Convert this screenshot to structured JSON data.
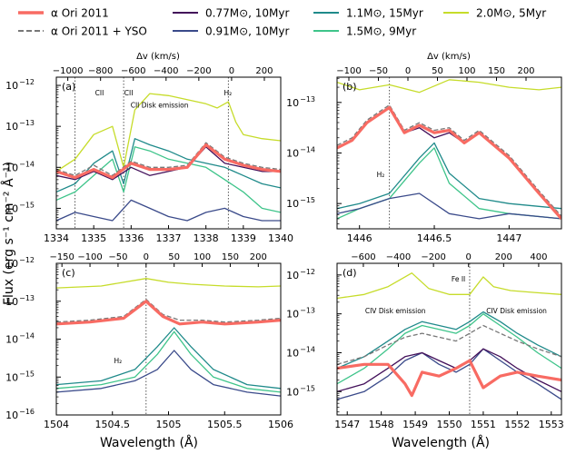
{
  "legend": [
    {
      "label": "α Ori 2011",
      "color": "#f86b63",
      "style": "solid-thick"
    },
    {
      "label": "α Ori 2011 + YSO",
      "color": "#777777",
      "style": "dashed"
    },
    {
      "label": "0.77M⊙, 10Myr",
      "color": "#43105a",
      "style": "solid"
    },
    {
      "label": "0.91M⊙, 10Myr",
      "color": "#3a4a8a",
      "style": "solid"
    },
    {
      "label": "1.1M⊙, 15Myr",
      "color": "#1f8a8a",
      "style": "solid"
    },
    {
      "label": "1.5M⊙, 9Myr",
      "color": "#3ec48a",
      "style": "solid"
    },
    {
      "label": "2.0M⊙, 5Myr",
      "color": "#c6dc2a",
      "style": "solid"
    }
  ],
  "ylabel": "Flux (erg s⁻¹ cm⁻² Å⁻¹)",
  "xlabel": "Wavelength (Å)",
  "toplabel": "Δv (km/s)",
  "chart_data": [
    {
      "id": "a",
      "panel_label": "(a)",
      "type": "line",
      "xlim": [
        1334,
        1340
      ],
      "xticks": [
        1334,
        1335,
        1336,
        1337,
        1338,
        1339,
        1340
      ],
      "ylim": [
        -15.5,
        -11.8
      ],
      "yticks": [
        -15,
        -14,
        -13,
        -12
      ],
      "vlim": [
        -1070,
        300
      ],
      "vticks": [
        -1000,
        -800,
        -600,
        -400,
        -200,
        0,
        200
      ],
      "vlines": [
        1334.5,
        1335.8,
        1338.6
      ],
      "line_labels": [
        "CII",
        "CII",
        "H₂"
      ],
      "annotations": [
        "CII Disk emission"
      ],
      "series": [
        {
          "name": "2.0M⊙, 5Myr",
          "x": [
            1334,
            1334.5,
            1335,
            1335.5,
            1335.8,
            1336.1,
            1336.5,
            1337,
            1337.5,
            1338,
            1338.3,
            1338.6,
            1338.8,
            1339,
            1339.5,
            1340
          ],
          "y": [
            -14.1,
            -13.8,
            -13.2,
            -13.0,
            -14.0,
            -12.6,
            -12.2,
            -12.25,
            -12.35,
            -12.45,
            -12.55,
            -12.4,
            -12.9,
            -13.2,
            -13.3,
            -13.35
          ]
        },
        {
          "name": "1.5M⊙, 9Myr",
          "x": [
            1334,
            1334.5,
            1335,
            1335.5,
            1335.8,
            1336.1,
            1336.5,
            1337,
            1337.5,
            1338,
            1338.5,
            1339,
            1339.5,
            1340
          ],
          "y": [
            -14.8,
            -14.6,
            -14.2,
            -13.8,
            -14.6,
            -13.5,
            -13.6,
            -13.8,
            -13.9,
            -14.0,
            -14.3,
            -14.6,
            -15.0,
            -15.1
          ]
        },
        {
          "name": "1.1M⊙, 15Myr",
          "x": [
            1334,
            1334.5,
            1335,
            1335.5,
            1335.8,
            1336.1,
            1336.5,
            1337,
            1337.5,
            1338,
            1338.5,
            1339,
            1339.5,
            1340
          ],
          "y": [
            -14.6,
            -14.4,
            -13.9,
            -13.6,
            -14.4,
            -13.3,
            -13.45,
            -13.6,
            -13.8,
            -13.9,
            -14.0,
            -14.2,
            -14.4,
            -14.5
          ]
        },
        {
          "name": "0.91M⊙, 10Myr",
          "x": [
            1334,
            1334.5,
            1335,
            1335.5,
            1336,
            1336.5,
            1337,
            1337.5,
            1338,
            1338.5,
            1339,
            1339.5,
            1340
          ],
          "y": [
            -15.3,
            -15.1,
            -15.2,
            -15.3,
            -14.8,
            -15.0,
            -15.2,
            -15.3,
            -15.1,
            -15.0,
            -15.2,
            -15.3,
            -15.3
          ]
        },
        {
          "name": "0.77M⊙, 10Myr",
          "x": [
            1334,
            1334.5,
            1335,
            1335.5,
            1336,
            1336.5,
            1337,
            1337.5,
            1338,
            1338.5,
            1339,
            1339.5,
            1340
          ],
          "y": [
            -14.2,
            -14.3,
            -14.1,
            -14.3,
            -14.0,
            -14.2,
            -14.1,
            -14.0,
            -13.5,
            -13.9,
            -14.0,
            -14.1,
            -14.1
          ]
        },
        {
          "name": "α Ori 2011 + YSO",
          "x": [
            1334,
            1334.5,
            1335,
            1335.5,
            1336,
            1336.5,
            1337,
            1337.5,
            1338,
            1338.5,
            1339,
            1339.5,
            1340
          ],
          "y": [
            -14.05,
            -14.2,
            -13.95,
            -14.2,
            -13.85,
            -14.0,
            -14.0,
            -13.95,
            -13.4,
            -13.75,
            -13.9,
            -14.0,
            -14.05
          ]
        },
        {
          "name": "α Ori 2011",
          "x": [
            1334,
            1334.5,
            1335,
            1335.5,
            1336,
            1336.5,
            1337,
            1337.5,
            1338,
            1338.5,
            1339,
            1339.5,
            1340
          ],
          "y": [
            -14.1,
            -14.25,
            -14.05,
            -14.25,
            -13.9,
            -14.05,
            -14.05,
            -14.0,
            -13.45,
            -13.8,
            -13.95,
            -14.05,
            -14.1
          ]
        }
      ]
    },
    {
      "id": "b",
      "panel_label": "(b)",
      "type": "line",
      "xlim": [
        1445.85,
        1447.35
      ],
      "xticks": [
        1446.0,
        1446.5,
        1447.0
      ],
      "ylim": [
        -15.5,
        -12.5
      ],
      "yticks": [
        -15,
        -14,
        -13
      ],
      "vlim": [
        -120,
        260
      ],
      "vticks": [
        -100,
        -50,
        0,
        50,
        100,
        150,
        200
      ],
      "vlines": [
        1446.2
      ],
      "line_labels": [
        "H₂"
      ],
      "annotations": [],
      "series": [
        {
          "name": "2.0M⊙, 5Myr",
          "x": [
            1445.85,
            1446.0,
            1446.2,
            1446.4,
            1446.6,
            1446.8,
            1447.0,
            1447.2,
            1447.35
          ],
          "y": [
            -12.6,
            -12.75,
            -12.65,
            -12.8,
            -12.55,
            -12.6,
            -12.7,
            -12.75,
            -12.7
          ]
        },
        {
          "name": "1.5M⊙, 9Myr",
          "x": [
            1445.85,
            1446.0,
            1446.2,
            1446.4,
            1446.5,
            1446.6,
            1446.8,
            1447.0,
            1447.35
          ],
          "y": [
            -15.3,
            -15.1,
            -14.9,
            -14.2,
            -13.9,
            -14.6,
            -15.1,
            -15.2,
            -15.3
          ]
        },
        {
          "name": "1.1M⊙, 15Myr",
          "x": [
            1445.85,
            1446.0,
            1446.2,
            1446.4,
            1446.5,
            1446.6,
            1446.8,
            1447.0,
            1447.35
          ],
          "y": [
            -15.1,
            -15.0,
            -14.8,
            -14.1,
            -13.8,
            -14.4,
            -14.9,
            -15.0,
            -15.1
          ]
        },
        {
          "name": "0.91M⊙, 10Myr",
          "x": [
            1445.85,
            1446.0,
            1446.2,
            1446.4,
            1446.6,
            1446.8,
            1447.0,
            1447.35
          ],
          "y": [
            -15.2,
            -15.1,
            -14.9,
            -14.8,
            -15.2,
            -15.3,
            -15.2,
            -15.3
          ]
        },
        {
          "name": "0.77M⊙, 10Myr",
          "x": [
            1445.85,
            1445.95,
            1446.05,
            1446.2,
            1446.3,
            1446.4,
            1446.5,
            1446.6,
            1446.7,
            1446.8,
            1447.0,
            1447.2,
            1447.35
          ],
          "y": [
            -13.9,
            -13.75,
            -13.4,
            -13.1,
            -13.6,
            -13.5,
            -13.7,
            -13.6,
            -13.8,
            -13.6,
            -14.1,
            -14.8,
            -15.3
          ]
        },
        {
          "name": "α Ori 2011 + YSO",
          "x": [
            1445.85,
            1445.95,
            1446.05,
            1446.2,
            1446.3,
            1446.4,
            1446.5,
            1446.6,
            1446.7,
            1446.8,
            1447.0,
            1447.2,
            1447.35
          ],
          "y": [
            -13.85,
            -13.7,
            -13.35,
            -13.05,
            -13.55,
            -13.4,
            -13.55,
            -13.5,
            -13.75,
            -13.55,
            -14.05,
            -14.75,
            -15.25
          ]
        },
        {
          "name": "α Ori 2011",
          "x": [
            1445.85,
            1445.95,
            1446.05,
            1446.2,
            1446.3,
            1446.4,
            1446.5,
            1446.6,
            1446.7,
            1446.8,
            1447.0,
            1447.2,
            1447.35
          ],
          "y": [
            -13.9,
            -13.75,
            -13.4,
            -13.1,
            -13.6,
            -13.45,
            -13.6,
            -13.55,
            -13.8,
            -13.6,
            -14.1,
            -14.8,
            -15.3
          ]
        }
      ]
    },
    {
      "id": "c",
      "panel_label": "(c)",
      "type": "line",
      "xlim": [
        1504.0,
        1506.0
      ],
      "xticks": [
        1504.0,
        1504.5,
        1505.0,
        1505.5,
        1506.0
      ],
      "ylim": [
        -16.0,
        -12.0
      ],
      "yticks": [
        -16,
        -15,
        -14,
        -13,
        -12
      ],
      "vlim": [
        -160,
        240
      ],
      "vticks": [
        -150,
        -100,
        -50,
        0,
        50,
        100,
        150,
        200
      ],
      "vlines": [
        1504.8
      ],
      "line_labels": [
        "H₂"
      ],
      "annotations": [],
      "series": [
        {
          "name": "2.0M⊙, 5Myr",
          "x": [
            1504.0,
            1504.4,
            1504.8,
            1505.0,
            1505.2,
            1505.5,
            1505.8,
            1506.0
          ],
          "y": [
            -12.65,
            -12.6,
            -12.4,
            -12.5,
            -12.55,
            -12.6,
            -12.62,
            -12.6
          ]
        },
        {
          "name": "1.5M⊙, 9Myr",
          "x": [
            1504.0,
            1504.4,
            1504.7,
            1504.9,
            1505.05,
            1505.2,
            1505.4,
            1505.7,
            1506.0
          ],
          "y": [
            -15.3,
            -15.2,
            -15.0,
            -14.4,
            -13.8,
            -14.4,
            -15.0,
            -15.3,
            -15.4
          ]
        },
        {
          "name": "1.1M⊙, 15Myr",
          "x": [
            1504.0,
            1504.4,
            1504.7,
            1504.9,
            1505.05,
            1505.2,
            1505.4,
            1505.7,
            1506.0
          ],
          "y": [
            -15.2,
            -15.1,
            -14.8,
            -14.2,
            -13.7,
            -14.2,
            -14.8,
            -15.2,
            -15.3
          ]
        },
        {
          "name": "0.91M⊙, 10Myr",
          "x": [
            1504.0,
            1504.4,
            1504.7,
            1504.9,
            1505.05,
            1505.2,
            1505.4,
            1505.7,
            1506.0
          ],
          "y": [
            -15.4,
            -15.3,
            -15.1,
            -14.8,
            -14.3,
            -14.8,
            -15.2,
            -15.4,
            -15.5
          ]
        },
        {
          "name": "0.77M⊙, 10Myr",
          "x": [
            1504.0,
            1504.3,
            1504.6,
            1504.8,
            1504.95,
            1505.1,
            1505.3,
            1505.5,
            1505.8,
            1506.0
          ],
          "y": [
            -13.6,
            -13.55,
            -13.45,
            -13.0,
            -13.4,
            -13.6,
            -13.55,
            -13.6,
            -13.55,
            -13.5
          ]
        },
        {
          "name": "α Ori 2011 + YSO",
          "x": [
            1504.0,
            1504.3,
            1504.6,
            1504.8,
            1504.95,
            1505.1,
            1505.3,
            1505.5,
            1505.8,
            1506.0
          ],
          "y": [
            -13.55,
            -13.5,
            -13.4,
            -12.95,
            -13.35,
            -13.5,
            -13.5,
            -13.55,
            -13.5,
            -13.45
          ]
        },
        {
          "name": "α Ori 2011",
          "x": [
            1504.0,
            1504.3,
            1504.6,
            1504.8,
            1504.95,
            1505.1,
            1505.3,
            1505.5,
            1505.8,
            1506.0
          ],
          "y": [
            -13.6,
            -13.55,
            -13.45,
            -13.0,
            -13.4,
            -13.6,
            -13.55,
            -13.6,
            -13.55,
            -13.5
          ]
        }
      ]
    },
    {
      "id": "d",
      "panel_label": "(d)",
      "type": "line",
      "xlim": [
        1546.7,
        1553.3
      ],
      "xticks": [
        1547,
        1548,
        1549,
        1550,
        1551,
        1552,
        1553
      ],
      "ylim": [
        -15.6,
        -11.7
      ],
      "yticks": [
        -15,
        -14,
        -13,
        -12
      ],
      "vlim": [
        -750,
        530
      ],
      "vticks": [
        -600,
        -400,
        -200,
        0,
        200,
        400
      ],
      "vlines": [
        1550.6
      ],
      "line_labels": [
        "Fe II"
      ],
      "annotations": [
        "CIV Disk emission",
        "CIV Disk emission"
      ],
      "series": [
        {
          "name": "2.0M⊙, 5Myr",
          "x": [
            1546.7,
            1547.5,
            1548.2,
            1548.9,
            1549.4,
            1550.0,
            1550.6,
            1551.0,
            1551.3,
            1551.8,
            1552.5,
            1553.3
          ],
          "y": [
            -12.6,
            -12.5,
            -12.3,
            -11.95,
            -12.35,
            -12.5,
            -12.5,
            -12.05,
            -12.3,
            -12.4,
            -12.45,
            -12.5
          ]
        },
        {
          "name": "1.5M⊙, 9Myr",
          "x": [
            1546.7,
            1547.5,
            1548.2,
            1548.7,
            1549.2,
            1549.7,
            1550.2,
            1550.6,
            1551.0,
            1551.5,
            1552.0,
            1552.6,
            1553.3
          ],
          "y": [
            -14.8,
            -14.4,
            -13.9,
            -13.5,
            -13.3,
            -13.4,
            -13.5,
            -13.3,
            -13.0,
            -13.3,
            -13.6,
            -14.0,
            -14.4
          ]
        },
        {
          "name": "1.1M⊙, 15Myr",
          "x": [
            1546.7,
            1547.5,
            1548.2,
            1548.7,
            1549.2,
            1549.7,
            1550.2,
            1550.6,
            1551.0,
            1551.5,
            1552.0,
            1552.6,
            1553.3
          ],
          "y": [
            -14.4,
            -14.1,
            -13.7,
            -13.4,
            -13.2,
            -13.3,
            -13.4,
            -13.2,
            -12.95,
            -13.2,
            -13.5,
            -13.8,
            -14.1
          ]
        },
        {
          "name": "0.91M⊙, 10Myr",
          "x": [
            1546.7,
            1547.5,
            1548.2,
            1548.7,
            1549.2,
            1549.7,
            1550.2,
            1550.6,
            1551.0,
            1551.5,
            1552.0,
            1552.6,
            1553.3
          ],
          "y": [
            -15.2,
            -15.0,
            -14.6,
            -14.2,
            -14.0,
            -14.3,
            -14.5,
            -14.3,
            -13.9,
            -14.2,
            -14.5,
            -14.8,
            -15.2
          ]
        },
        {
          "name": "0.77M⊙, 10Myr",
          "x": [
            1546.7,
            1547.5,
            1548.2,
            1548.7,
            1549.2,
            1549.7,
            1550.2,
            1550.6,
            1551.0,
            1551.5,
            1552.0,
            1552.6,
            1553.3
          ],
          "y": [
            -15.0,
            -14.8,
            -14.4,
            -14.1,
            -14.0,
            -14.2,
            -14.4,
            -14.2,
            -13.9,
            -14.1,
            -14.4,
            -14.7,
            -15.0
          ]
        },
        {
          "name": "α Ori 2011 + YSO",
          "x": [
            1546.7,
            1547.5,
            1548.2,
            1548.7,
            1549.2,
            1549.7,
            1550.2,
            1550.6,
            1551.0,
            1551.5,
            1552.0,
            1552.6,
            1553.3
          ],
          "y": [
            -14.3,
            -14.1,
            -13.8,
            -13.6,
            -13.5,
            -13.6,
            -13.7,
            -13.5,
            -13.3,
            -13.5,
            -13.7,
            -13.9,
            -14.1
          ]
        },
        {
          "name": "α Ori 2011",
          "x": [
            1546.7,
            1547.5,
            1548.2,
            1548.7,
            1548.9,
            1549.2,
            1549.7,
            1550.2,
            1550.6,
            1551.0,
            1551.5,
            1552.0,
            1552.6,
            1553.3
          ],
          "y": [
            -14.4,
            -14.3,
            -14.3,
            -14.8,
            -15.1,
            -14.5,
            -14.6,
            -14.4,
            -14.2,
            -14.9,
            -14.6,
            -14.5,
            -14.6,
            -14.7
          ]
        }
      ]
    }
  ]
}
